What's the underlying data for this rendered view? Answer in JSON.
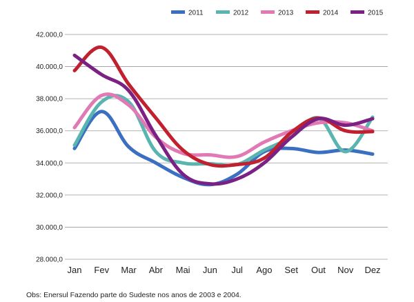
{
  "note": "Obs: Enersul Fazendo parte do Sudeste nos anos de 2003 e 2004.",
  "chart_data": {
    "type": "line",
    "title": "",
    "xlabel": "",
    "ylabel": "",
    "categories": [
      "Jan",
      "Fev",
      "Mar",
      "Abr",
      "Mai",
      "Jun",
      "Jul",
      "Ago",
      "Set",
      "Out",
      "Nov",
      "Dez"
    ],
    "ylim": [
      28000,
      42000
    ],
    "yticks": [
      28000,
      30000,
      32000,
      34000,
      36000,
      38000,
      40000,
      42000
    ],
    "ytick_labels": [
      "28.000,0",
      "30.000,0",
      "32.000,0",
      "34.000,0",
      "36.000,0",
      "38.000,0",
      "40.000,0",
      "42.000,0"
    ],
    "grid": "horizontal",
    "legend_position": "top-right",
    "series": [
      {
        "name": "2011",
        "color": "#3b6fc1",
        "values": [
          34900,
          37200,
          35000,
          34000,
          33100,
          32650,
          33300,
          34700,
          34900,
          34650,
          34800,
          34550
        ]
      },
      {
        "name": "2012",
        "color": "#5ab4b0",
        "values": [
          35100,
          37800,
          37800,
          34700,
          34000,
          33950,
          33900,
          34800,
          35600,
          36800,
          34700,
          36850
        ]
      },
      {
        "name": "2013",
        "color": "#e079b4",
        "values": [
          36200,
          38200,
          37600,
          35600,
          34600,
          34500,
          34400,
          35300,
          36000,
          36500,
          36500,
          36000
        ]
      },
      {
        "name": "2014",
        "color": "#c1202f",
        "values": [
          39750,
          41200,
          38900,
          36800,
          34800,
          33900,
          33900,
          34300,
          35900,
          36800,
          36000,
          35950
        ]
      },
      {
        "name": "2015",
        "color": "#7a2183",
        "values": [
          40700,
          39500,
          38500,
          35700,
          33300,
          32700,
          33000,
          34000,
          35600,
          36750,
          36350,
          36750
        ]
      }
    ]
  }
}
